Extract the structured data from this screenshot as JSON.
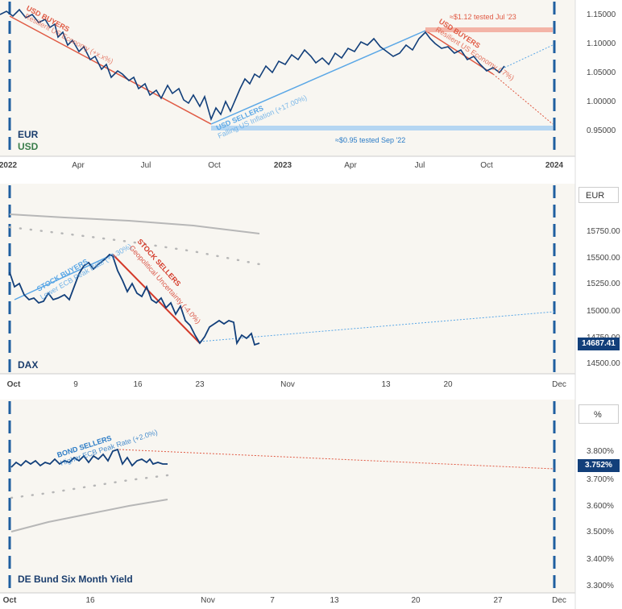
{
  "panels": [
    {
      "id": "eurusd",
      "labels": [
        "EUR",
        "USD"
      ],
      "label_colors": [
        "#1a3d6d",
        "#3a7d4a"
      ],
      "x_ticks": [
        "2022",
        "Apr",
        "Jul",
        "Oct",
        "2023",
        "Apr",
        "Jul",
        "Oct",
        "2024"
      ],
      "y_ticks": [
        "1.15000",
        "1.10000",
        "1.05000",
        "1.00000",
        "0.95000"
      ],
      "annotations": {
        "buyers_title": "USD BUYERS",
        "buyers_sub": "Resilient US Economy (+x.x%)",
        "sellers_title": "USD SELLERS",
        "sellers_sub": "Falling US Inflation (+17.00%)",
        "buyers2_title": "USD BUYERS",
        "buyers2_sub": "Resilient US Economy (-7%)",
        "top_level": "≈$1.12 tested Jul '23",
        "bottom_level": "≈$0.95 tested Sep '22"
      }
    },
    {
      "id": "dax",
      "labels": [
        "DAX"
      ],
      "label_colors": [
        "#1a3d6d"
      ],
      "unit": "EUR",
      "x_ticks": [
        "Oct",
        "9",
        "16",
        "23",
        "Nov",
        "13",
        "20",
        "Dec"
      ],
      "y_ticks": [
        "15750.00",
        "15500.00",
        "15250.00",
        "15000.00",
        "14750.00",
        "14500.00"
      ],
      "last_value": "14687.41",
      "annotations": {
        "buyers_title": "STOCK BUYERS",
        "buyers_sub": "Lower ECB Peak Rate (+3.30%)",
        "sellers_title": "STOCK SELLERS",
        "sellers_sub": "Geopolitical Uncertainty (-4.0%)"
      }
    },
    {
      "id": "bund",
      "labels": [
        "DE Bund Six Month Yield"
      ],
      "label_colors": [
        "#1a3d6d"
      ],
      "unit": "%",
      "x_ticks": [
        "Oct",
        "16",
        "Nov",
        "7",
        "13",
        "20",
        "27",
        "Dec"
      ],
      "y_ticks": [
        "3.800%",
        "3.700%",
        "3.600%",
        "3.500%",
        "3.400%",
        "3.300%"
      ],
      "last_value": "3.752%",
      "annotations": {
        "sellers_title": "BOND SELLERS",
        "sellers_sub": "Higher ECB Peak Rate (+2.0%)"
      }
    }
  ],
  "colors": {
    "price": "#123f7a",
    "buyers": "#e05a44",
    "sellers": "#5aa7e6",
    "ma": "#b7b7b7",
    "bg": "#f8f6f1"
  },
  "chart_data": [
    {
      "type": "line",
      "title": "",
      "series": [
        {
          "name": "EUR/USD",
          "x": [
            "2022-01",
            "2022-02",
            "2022-03",
            "2022-04",
            "2022-05",
            "2022-06",
            "2022-07",
            "2022-08",
            "2022-09",
            "2022-10",
            "2022-11",
            "2022-12",
            "2023-01",
            "2023-02",
            "2023-03",
            "2023-04",
            "2023-05",
            "2023-06",
            "2023-07",
            "2023-08",
            "2023-09",
            "2023-10"
          ],
          "values": [
            1.135,
            1.13,
            1.1,
            1.085,
            1.055,
            1.05,
            1.02,
            1.005,
            0.975,
            0.985,
            1.03,
            1.065,
            1.085,
            1.07,
            1.085,
            1.1,
            1.085,
            1.09,
            1.115,
            1.095,
            1.07,
            1.06
          ]
        }
      ],
      "ylim": [
        0.925,
        1.17
      ]
    },
    {
      "type": "line",
      "title": "",
      "series": [
        {
          "name": "DAX",
          "x": [
            "Sep 28",
            "Oct 2",
            "Oct 5",
            "Oct 9",
            "Oct 11",
            "Oct 13",
            "Oct 16",
            "Oct 18",
            "Oct 20",
            "Oct 23",
            "Oct 25",
            "Oct 27",
            "Oct 30"
          ],
          "values": [
            15370,
            15080,
            15100,
            15120,
            15400,
            15380,
            15220,
            15100,
            14950,
            14700,
            14900,
            14800,
            14687.41
          ]
        }
      ],
      "ylim": [
        14450,
        15920
      ]
    },
    {
      "type": "line",
      "title": "",
      "series": [
        {
          "name": "DE Bund Six Month Yield",
          "x": [
            "Oct 2",
            "Oct 6",
            "Oct 10",
            "Oct 16",
            "Oct 20",
            "Oct 24",
            "Oct 27"
          ],
          "values": [
            3.745,
            3.755,
            3.75,
            3.76,
            3.755,
            3.755,
            3.752
          ]
        }
      ],
      "ylim": [
        3.29,
        3.89
      ]
    }
  ]
}
